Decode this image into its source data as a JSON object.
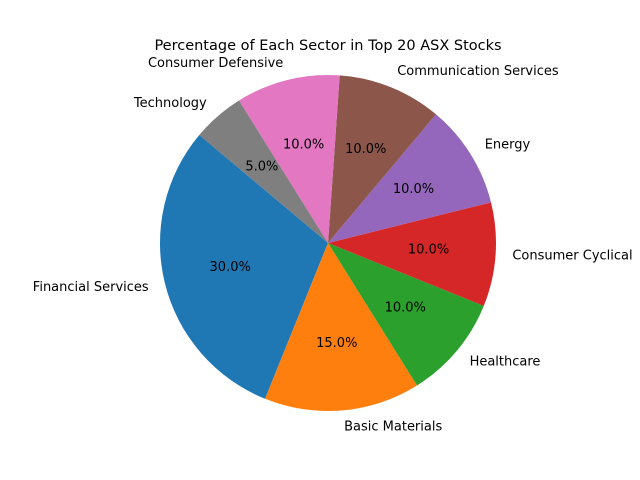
{
  "chart_data": {
    "type": "pie",
    "title": "Percentage of Each Sector in Top 20 ASX Stocks",
    "start_angle_deg": 140,
    "direction": "counterclockwise",
    "autopct_format": "1 decimal place with %",
    "slices": [
      {
        "label": "Financial Services",
        "value": 30.0,
        "pct_label": "30.0%",
        "color": "#1f77b4"
      },
      {
        "label": "Basic Materials",
        "value": 15.0,
        "pct_label": "15.0%",
        "color": "#ff7f0e"
      },
      {
        "label": "Healthcare",
        "value": 10.0,
        "pct_label": "10.0%",
        "color": "#2ca02c"
      },
      {
        "label": "Consumer Cyclical",
        "value": 10.0,
        "pct_label": "10.0%",
        "color": "#d62728"
      },
      {
        "label": "Energy",
        "value": 10.0,
        "pct_label": "10.0%",
        "color": "#9467bd"
      },
      {
        "label": "Communication Services",
        "value": 10.0,
        "pct_label": "10.0%",
        "color": "#8c564b"
      },
      {
        "label": "Consumer Defensive",
        "value": 10.0,
        "pct_label": "10.0%",
        "color": "#e377c2"
      },
      {
        "label": "Technology",
        "value": 5.0,
        "pct_label": "5.0%",
        "color": "#7f7f7f"
      }
    ]
  }
}
